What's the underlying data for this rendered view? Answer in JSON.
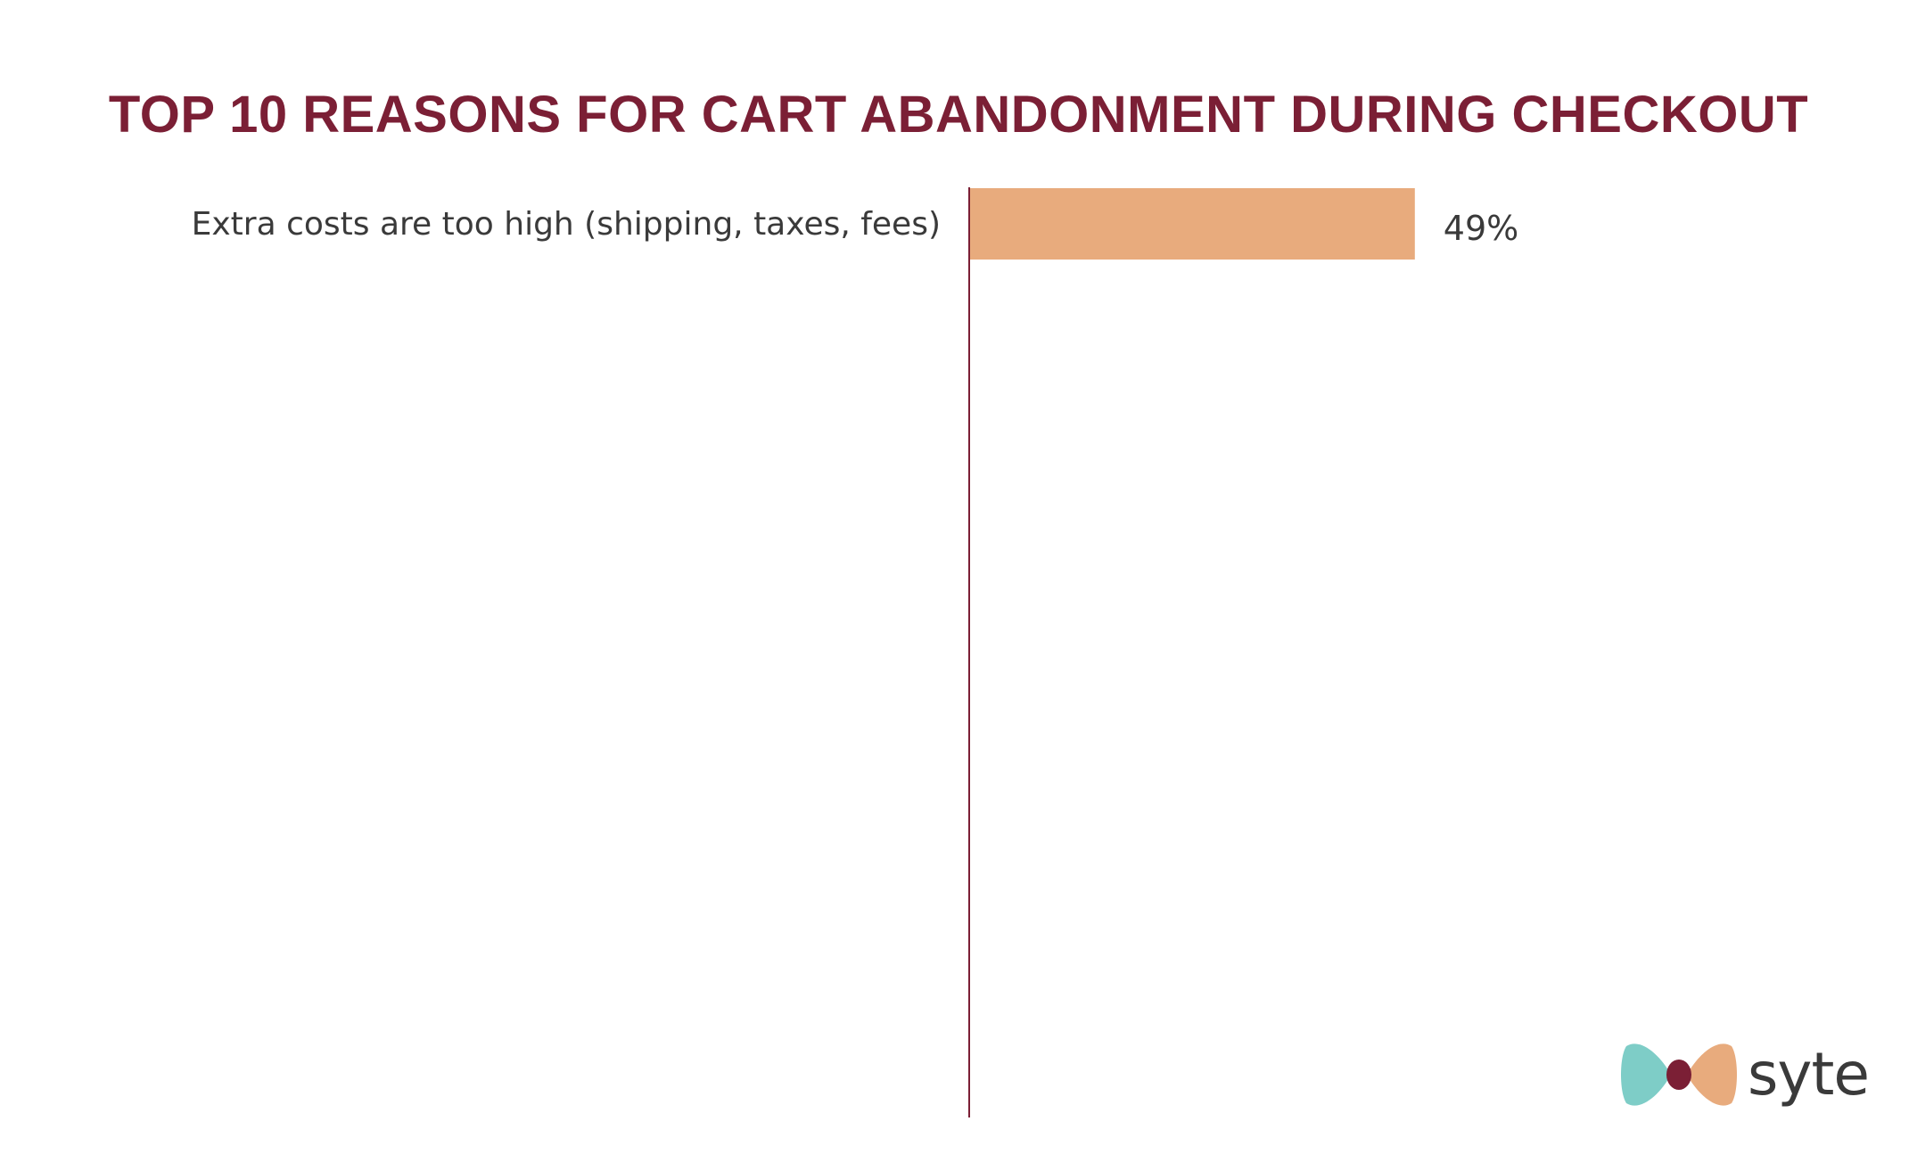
{
  "chart_data": {
    "type": "bar",
    "orientation": "horizontal",
    "title": "TOP 10 REASONS FOR CART ABANDONMENT DURING CHECKOUT",
    "categories": [
      "Extra costs are too high (shipping, taxes, fees)"
    ],
    "values": [
      49
    ],
    "value_labels": [
      "49%"
    ],
    "xlabel": "",
    "ylabel": "",
    "grid": false,
    "legend": "none"
  },
  "colors": {
    "title": "#7b1f35",
    "bar": "#e8ab7d",
    "axis": "#7b1f35",
    "text": "#3a3a3a",
    "logo_teal": "#7ecdc7",
    "logo_orange": "#e8ab7d",
    "logo_center": "#7b1f35"
  },
  "logo": {
    "text": "syte"
  }
}
